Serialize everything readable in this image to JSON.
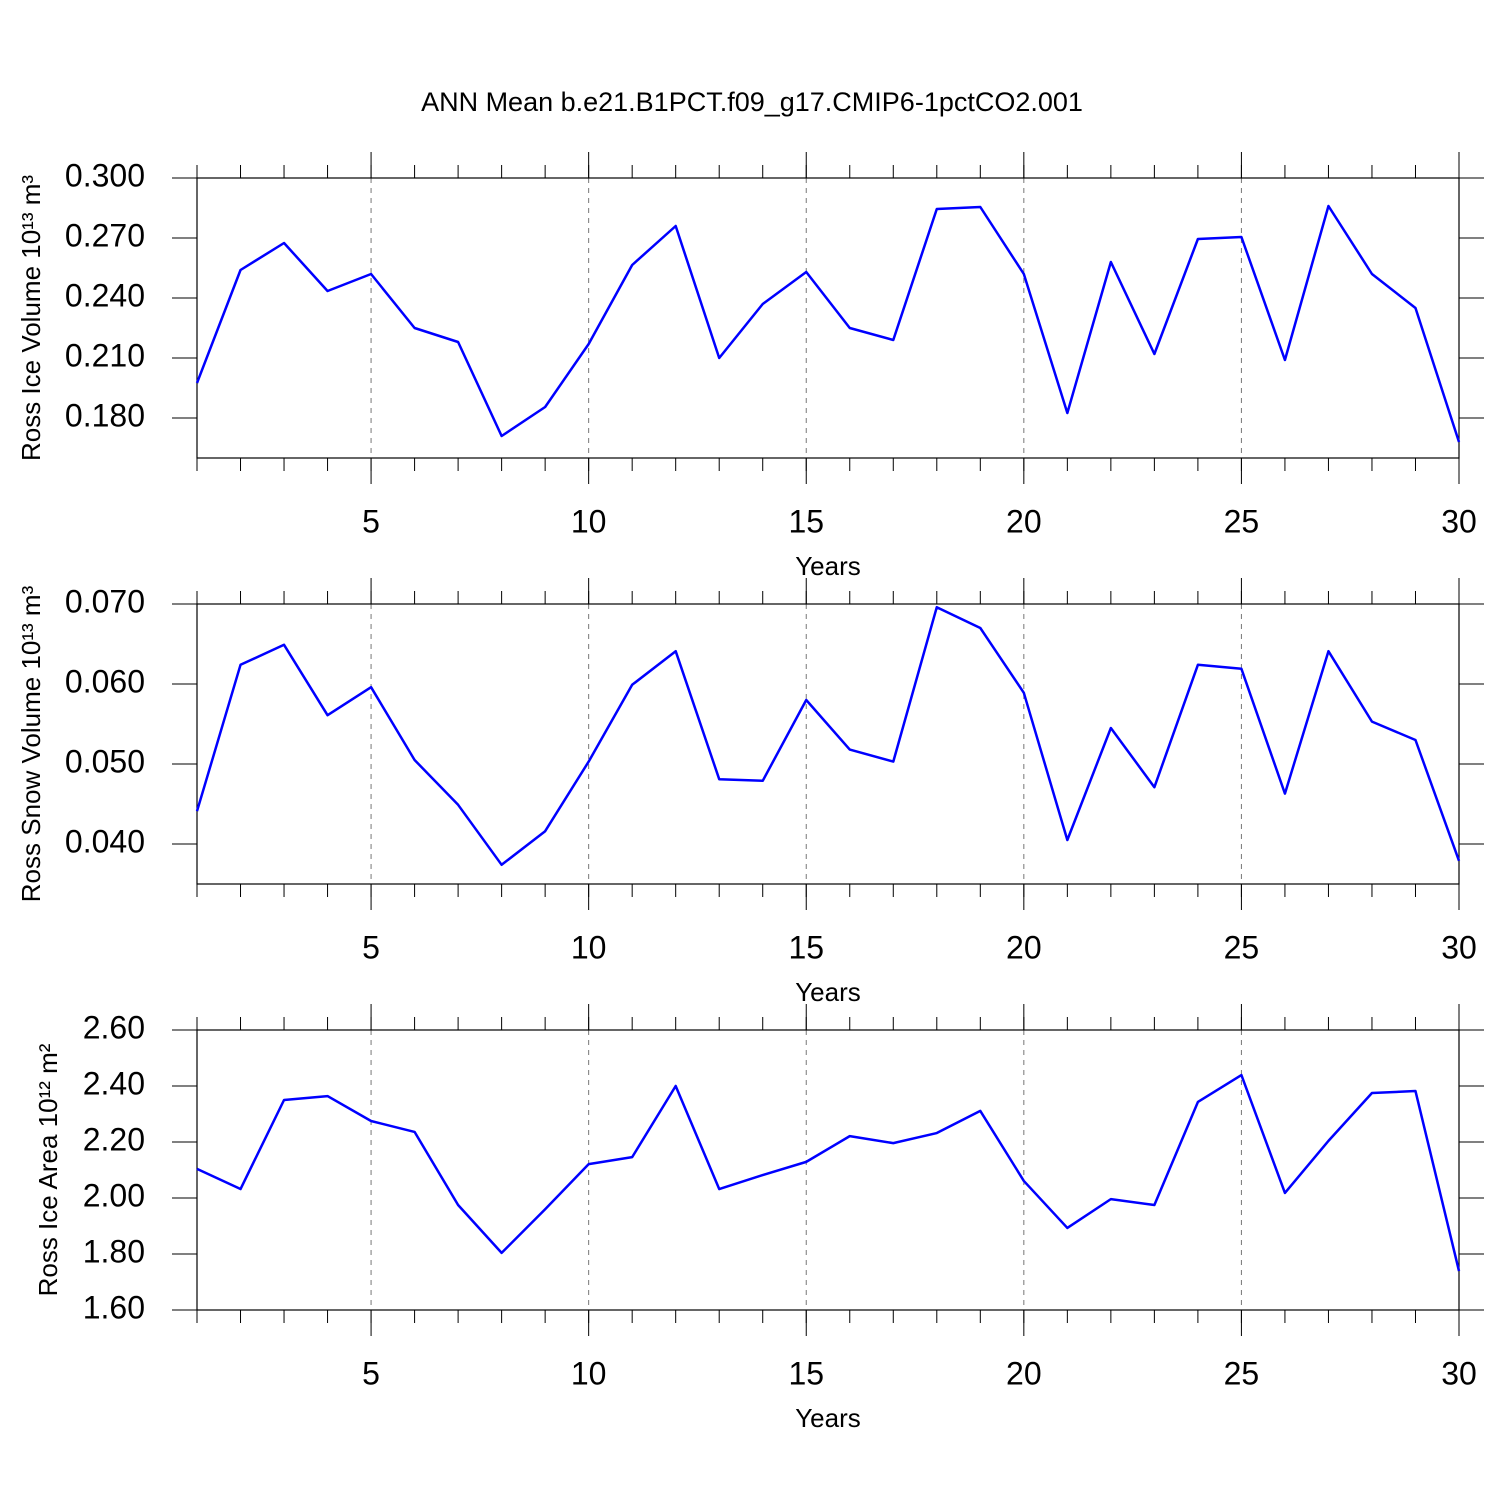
{
  "chart_data": [
    {
      "type": "line",
      "title": "ANN Mean b.e21.B1PCT.f09_g17.CMIP6-1pctCO2.001",
      "xlabel": "Years",
      "ylabel": "Ross Ice Volume 10¹³ m³",
      "color": "#0000ff",
      "grid": true,
      "x": [
        1,
        2,
        3,
        4,
        5,
        6,
        7,
        8,
        9,
        10,
        11,
        12,
        13,
        14,
        15,
        16,
        17,
        18,
        19,
        20,
        21,
        22,
        23,
        24,
        25,
        26,
        27,
        28,
        29,
        30
      ],
      "values": [
        0.1975,
        0.254,
        0.2675,
        0.2435,
        0.252,
        0.225,
        0.218,
        0.171,
        0.1855,
        0.217,
        0.2565,
        0.276,
        0.21,
        0.237,
        0.253,
        0.225,
        0.219,
        0.2845,
        0.2855,
        0.252,
        0.1825,
        0.258,
        0.212,
        0.2695,
        0.2705,
        0.209,
        0.286,
        0.252,
        0.235,
        0.168
      ],
      "xlim": [
        1,
        30
      ],
      "xticks": [
        5,
        10,
        15,
        20,
        25,
        30
      ],
      "ylim": [
        0.16,
        0.3
      ],
      "yticks": [
        {
          "value": 0.18,
          "label": "0.180"
        },
        {
          "value": 0.21,
          "label": "0.210"
        },
        {
          "value": 0.24,
          "label": "0.240"
        },
        {
          "value": 0.27,
          "label": "0.270"
        },
        {
          "value": 0.3,
          "label": "0.300"
        }
      ]
    },
    {
      "type": "line",
      "xlabel": "Years",
      "ylabel": "Ross Snow Volume 10¹³ m³",
      "color": "#0000ff",
      "grid": true,
      "x": [
        1,
        2,
        3,
        4,
        5,
        6,
        7,
        8,
        9,
        10,
        11,
        12,
        13,
        14,
        15,
        16,
        17,
        18,
        19,
        20,
        21,
        22,
        23,
        24,
        25,
        26,
        27,
        28,
        29,
        30
      ],
      "values": [
        0.0441,
        0.0624,
        0.0649,
        0.0561,
        0.0596,
        0.0505,
        0.0449,
        0.0374,
        0.0416,
        0.0503,
        0.0599,
        0.0641,
        0.0481,
        0.0479,
        0.058,
        0.0518,
        0.0503,
        0.0696,
        0.067,
        0.0589,
        0.0405,
        0.0545,
        0.0471,
        0.0624,
        0.0619,
        0.0463,
        0.0641,
        0.0553,
        0.053,
        0.0379
      ],
      "xlim": [
        1,
        30
      ],
      "xticks": [
        5,
        10,
        15,
        20,
        25,
        30
      ],
      "ylim": [
        0.035,
        0.07
      ],
      "yticks": [
        {
          "value": 0.04,
          "label": "0.040"
        },
        {
          "value": 0.05,
          "label": "0.050"
        },
        {
          "value": 0.06,
          "label": "0.060"
        },
        {
          "value": 0.07,
          "label": "0.070"
        }
      ]
    },
    {
      "type": "line",
      "xlabel": "Years",
      "ylabel": "Ross Ice Area 10¹² m²",
      "color": "#0000ff",
      "grid": true,
      "x": [
        1,
        2,
        3,
        4,
        5,
        6,
        7,
        8,
        9,
        10,
        11,
        12,
        13,
        14,
        15,
        16,
        17,
        18,
        19,
        20,
        21,
        22,
        23,
        24,
        25,
        26,
        27,
        28,
        29,
        30
      ],
      "values": [
        2.104,
        2.032,
        2.35,
        2.364,
        2.275,
        2.236,
        1.975,
        1.804,
        1.96,
        2.121,
        2.146,
        2.4,
        2.032,
        2.082,
        2.129,
        2.221,
        2.196,
        2.232,
        2.311,
        2.061,
        1.893,
        1.996,
        1.975,
        2.343,
        2.439,
        2.018,
        2.204,
        2.375,
        2.382,
        1.739
      ],
      "xlim": [
        1,
        30
      ],
      "xticks": [
        5,
        10,
        15,
        20,
        25,
        30
      ],
      "ylim": [
        1.6,
        2.6
      ],
      "yticks": [
        {
          "value": 1.6,
          "label": "1.60"
        },
        {
          "value": 1.8,
          "label": "1.80"
        },
        {
          "value": 2.0,
          "label": "2.00"
        },
        {
          "value": 2.2,
          "label": "2.20"
        },
        {
          "value": 2.4,
          "label": "2.40"
        },
        {
          "value": 2.6,
          "label": "2.60"
        }
      ]
    }
  ]
}
